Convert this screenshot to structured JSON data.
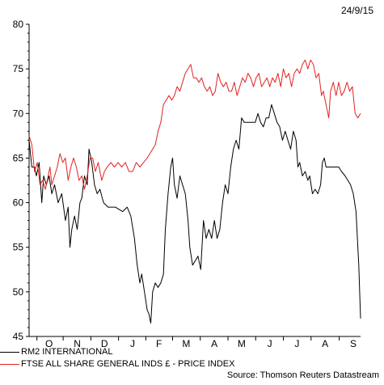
{
  "date_label": "24/9/15",
  "source": "Source: Thomson Reuters Datastream",
  "chart_data": {
    "type": "line",
    "title": "",
    "xlabel": "",
    "ylabel": "",
    "ylim": [
      45,
      80
    ],
    "yticks": [
      45,
      50,
      55,
      60,
      65,
      70,
      75,
      80
    ],
    "x_range": [
      "2014-09-24",
      "2015-09-24"
    ],
    "month_ticks": [
      {
        "label": "O",
        "date": "2014-10-16"
      },
      {
        "label": "N",
        "date": "2014-11-16"
      },
      {
        "label": "D",
        "date": "2014-12-16"
      },
      {
        "label": "J",
        "date": "2015-01-16"
      },
      {
        "label": "F",
        "date": "2015-02-14"
      },
      {
        "label": "M",
        "date": "2015-03-16"
      },
      {
        "label": "A",
        "date": "2015-04-16"
      },
      {
        "label": "M",
        "date": "2015-05-16"
      },
      {
        "label": "J",
        "date": "2015-06-16"
      },
      {
        "label": "J",
        "date": "2015-07-16"
      },
      {
        "label": "A",
        "date": "2015-08-16"
      },
      {
        "label": "S",
        "date": "2015-09-16"
      }
    ],
    "grid": false,
    "legend_position": "bottom-left",
    "series": [
      {
        "name": "RM2 INTERNATIONAL",
        "color": "#000000",
        "points": [
          [
            "2014-09-24",
            67
          ],
          [
            "2014-09-27",
            64
          ],
          [
            "2014-09-30",
            64
          ],
          [
            "2014-10-02",
            63
          ],
          [
            "2014-10-05",
            64.5
          ],
          [
            "2014-10-08",
            60
          ],
          [
            "2014-10-10",
            63
          ],
          [
            "2014-10-13",
            62
          ],
          [
            "2014-10-16",
            63
          ],
          [
            "2014-10-19",
            61
          ],
          [
            "2014-10-22",
            62
          ],
          [
            "2014-10-26",
            60
          ],
          [
            "2014-10-30",
            61
          ],
          [
            "2014-11-03",
            58
          ],
          [
            "2014-11-06",
            59.5
          ],
          [
            "2014-11-08",
            55
          ],
          [
            "2014-11-10",
            57
          ],
          [
            "2014-11-13",
            58.5
          ],
          [
            "2014-11-16",
            57
          ],
          [
            "2014-11-19",
            60
          ],
          [
            "2014-11-21",
            60.5
          ],
          [
            "2014-11-24",
            63
          ],
          [
            "2014-11-27",
            62
          ],
          [
            "2014-11-29",
            66
          ],
          [
            "2014-12-02",
            64.5
          ],
          [
            "2014-12-05",
            62
          ],
          [
            "2014-12-08",
            61
          ],
          [
            "2014-12-11",
            61.5
          ],
          [
            "2014-12-15",
            60
          ],
          [
            "2014-12-20",
            59.5
          ],
          [
            "2014-12-28",
            59.5
          ],
          [
            "2015-01-05",
            59
          ],
          [
            "2015-01-10",
            59.5
          ],
          [
            "2015-01-14",
            58.5
          ],
          [
            "2015-01-18",
            56
          ],
          [
            "2015-01-21",
            53
          ],
          [
            "2015-01-24",
            51
          ],
          [
            "2015-01-26",
            52
          ],
          [
            "2015-01-29",
            50
          ],
          [
            "2015-02-01",
            48
          ],
          [
            "2015-02-03",
            47.5
          ],
          [
            "2015-02-05",
            46.5
          ],
          [
            "2015-02-07",
            50
          ],
          [
            "2015-02-10",
            51
          ],
          [
            "2015-02-13",
            50.5
          ],
          [
            "2015-02-16",
            51
          ],
          [
            "2015-02-19",
            52
          ],
          [
            "2015-02-21",
            57
          ],
          [
            "2015-02-24",
            61
          ],
          [
            "2015-02-27",
            64
          ],
          [
            "2015-03-01",
            65
          ],
          [
            "2015-03-03",
            62
          ],
          [
            "2015-03-06",
            60.5
          ],
          [
            "2015-03-09",
            63
          ],
          [
            "2015-03-12",
            62
          ],
          [
            "2015-03-15",
            61
          ],
          [
            "2015-03-18",
            58
          ],
          [
            "2015-03-20",
            55
          ],
          [
            "2015-03-23",
            53
          ],
          [
            "2015-03-26",
            53.5
          ],
          [
            "2015-03-29",
            54
          ],
          [
            "2015-04-01",
            52.5
          ],
          [
            "2015-04-04",
            58
          ],
          [
            "2015-04-07",
            56
          ],
          [
            "2015-04-10",
            57
          ],
          [
            "2015-04-13",
            56
          ],
          [
            "2015-04-16",
            58
          ],
          [
            "2015-04-19",
            56
          ],
          [
            "2015-04-22",
            57
          ],
          [
            "2015-04-25",
            60
          ],
          [
            "2015-04-28",
            62
          ],
          [
            "2015-05-01",
            61
          ],
          [
            "2015-05-04",
            64
          ],
          [
            "2015-05-07",
            66
          ],
          [
            "2015-05-10",
            67
          ],
          [
            "2015-05-13",
            66
          ],
          [
            "2015-05-16",
            69.5
          ],
          [
            "2015-05-19",
            69
          ],
          [
            "2015-05-25",
            69
          ],
          [
            "2015-05-31",
            69
          ],
          [
            "2015-06-03",
            70
          ],
          [
            "2015-06-06",
            69
          ],
          [
            "2015-06-09",
            68.5
          ],
          [
            "2015-06-12",
            69.5
          ],
          [
            "2015-06-15",
            69.5
          ],
          [
            "2015-06-18",
            71
          ],
          [
            "2015-06-21",
            70
          ],
          [
            "2015-06-24",
            69
          ],
          [
            "2015-06-27",
            68.5
          ],
          [
            "2015-06-30",
            67
          ],
          [
            "2015-07-03",
            68
          ],
          [
            "2015-07-06",
            67
          ],
          [
            "2015-07-09",
            66
          ],
          [
            "2015-07-12",
            68
          ],
          [
            "2015-07-15",
            67
          ],
          [
            "2015-07-17",
            64
          ],
          [
            "2015-07-19",
            64.5
          ],
          [
            "2015-07-22",
            63
          ],
          [
            "2015-07-25",
            63.5
          ],
          [
            "2015-07-28",
            62.5
          ],
          [
            "2015-07-30",
            63
          ],
          [
            "2015-08-02",
            61
          ],
          [
            "2015-08-05",
            61.5
          ],
          [
            "2015-08-08",
            61
          ],
          [
            "2015-08-11",
            62
          ],
          [
            "2015-08-13",
            64.5
          ],
          [
            "2015-08-15",
            65
          ],
          [
            "2015-08-17",
            64
          ],
          [
            "2015-08-21",
            64
          ],
          [
            "2015-08-26",
            64
          ],
          [
            "2015-08-31",
            64
          ],
          [
            "2015-09-03",
            63.5
          ],
          [
            "2015-09-07",
            63
          ],
          [
            "2015-09-10",
            62.5
          ],
          [
            "2015-09-13",
            62
          ],
          [
            "2015-09-16",
            61
          ],
          [
            "2015-09-19",
            59
          ],
          [
            "2015-09-22",
            53
          ],
          [
            "2015-09-24",
            47
          ]
        ]
      },
      {
        "name": "FTSE ALL SHARE GENERAL INDS £ - PRICE INDEX",
        "color": "#e32222",
        "points": [
          [
            "2014-09-24",
            67.5
          ],
          [
            "2014-09-27",
            66.5
          ],
          [
            "2014-09-30",
            63.5
          ],
          [
            "2014-10-03",
            64.5
          ],
          [
            "2014-10-06",
            62
          ],
          [
            "2014-10-09",
            62.5
          ],
          [
            "2014-10-12",
            61.5
          ],
          [
            "2014-10-14",
            62.5
          ],
          [
            "2014-10-17",
            64
          ],
          [
            "2014-10-19",
            62
          ],
          [
            "2014-10-22",
            63
          ],
          [
            "2014-10-25",
            64
          ],
          [
            "2014-10-28",
            65.5
          ],
          [
            "2014-10-31",
            64.5
          ],
          [
            "2014-11-03",
            65
          ],
          [
            "2014-11-06",
            62.5
          ],
          [
            "2014-11-09",
            64
          ],
          [
            "2014-11-12",
            65
          ],
          [
            "2014-11-15",
            64
          ],
          [
            "2014-11-18",
            62.5
          ],
          [
            "2014-11-21",
            63
          ],
          [
            "2014-11-24",
            61.5
          ],
          [
            "2014-11-27",
            63
          ],
          [
            "2014-11-30",
            65
          ],
          [
            "2014-12-03",
            65
          ],
          [
            "2014-12-06",
            63.5
          ],
          [
            "2014-12-09",
            64.5
          ],
          [
            "2014-12-13",
            62.5
          ],
          [
            "2014-12-16",
            63.5
          ],
          [
            "2014-12-19",
            64
          ],
          [
            "2014-12-23",
            64.5
          ],
          [
            "2014-12-27",
            64
          ],
          [
            "2014-12-31",
            64.5
          ],
          [
            "2015-01-04",
            64
          ],
          [
            "2015-01-08",
            64.5
          ],
          [
            "2015-01-12",
            63.5
          ],
          [
            "2015-01-16",
            63.5
          ],
          [
            "2015-01-20",
            64.5
          ],
          [
            "2015-01-24",
            64
          ],
          [
            "2015-01-28",
            64.5
          ],
          [
            "2015-02-01",
            65
          ],
          [
            "2015-02-04",
            65.5
          ],
          [
            "2015-02-07",
            66
          ],
          [
            "2015-02-10",
            66.5
          ],
          [
            "2015-02-13",
            68
          ],
          [
            "2015-02-16",
            69
          ],
          [
            "2015-02-19",
            71
          ],
          [
            "2015-02-22",
            71.5
          ],
          [
            "2015-02-25",
            72
          ],
          [
            "2015-02-28",
            71.5
          ],
          [
            "2015-03-03",
            72
          ],
          [
            "2015-03-06",
            73
          ],
          [
            "2015-03-09",
            72.5
          ],
          [
            "2015-03-12",
            73.5
          ],
          [
            "2015-03-15",
            74.5
          ],
          [
            "2015-03-18",
            75
          ],
          [
            "2015-03-21",
            75.5
          ],
          [
            "2015-03-24",
            74
          ],
          [
            "2015-03-27",
            74
          ],
          [
            "2015-03-30",
            73.5
          ],
          [
            "2015-04-02",
            74
          ],
          [
            "2015-04-05",
            73
          ],
          [
            "2015-04-08",
            72.5
          ],
          [
            "2015-04-11",
            73
          ],
          [
            "2015-04-14",
            72
          ],
          [
            "2015-04-17",
            72.5
          ],
          [
            "2015-04-20",
            74.5
          ],
          [
            "2015-04-23",
            73.5
          ],
          [
            "2015-04-26",
            73
          ],
          [
            "2015-04-29",
            73.5
          ],
          [
            "2015-05-02",
            72.5
          ],
          [
            "2015-05-05",
            72.5
          ],
          [
            "2015-05-08",
            73.5
          ],
          [
            "2015-05-11",
            72
          ],
          [
            "2015-05-14",
            73
          ],
          [
            "2015-05-17",
            74
          ],
          [
            "2015-05-20",
            73.5
          ],
          [
            "2015-05-23",
            74.5
          ],
          [
            "2015-05-26",
            74
          ],
          [
            "2015-05-29",
            73
          ],
          [
            "2015-06-01",
            74
          ],
          [
            "2015-06-04",
            74.5
          ],
          [
            "2015-06-07",
            73
          ],
          [
            "2015-06-10",
            73.5
          ],
          [
            "2015-06-13",
            74
          ],
          [
            "2015-06-16",
            73
          ],
          [
            "2015-06-19",
            74
          ],
          [
            "2015-06-22",
            73.5
          ],
          [
            "2015-06-25",
            74.5
          ],
          [
            "2015-06-28",
            73
          ],
          [
            "2015-07-01",
            75
          ],
          [
            "2015-07-04",
            74
          ],
          [
            "2015-07-07",
            74.5
          ],
          [
            "2015-07-10",
            73
          ],
          [
            "2015-07-13",
            74.5
          ],
          [
            "2015-07-16",
            75
          ],
          [
            "2015-07-19",
            74.5
          ],
          [
            "2015-07-22",
            75.5
          ],
          [
            "2015-07-25",
            76
          ],
          [
            "2015-07-28",
            75
          ],
          [
            "2015-07-31",
            76
          ],
          [
            "2015-08-03",
            75.5
          ],
          [
            "2015-08-06",
            74
          ],
          [
            "2015-08-09",
            74.5
          ],
          [
            "2015-08-12",
            72
          ],
          [
            "2015-08-14",
            72.5
          ],
          [
            "2015-08-17",
            71
          ],
          [
            "2015-08-20",
            69.5
          ],
          [
            "2015-08-22",
            72.5
          ],
          [
            "2015-08-25",
            73.5
          ],
          [
            "2015-08-28",
            72
          ],
          [
            "2015-08-31",
            73.5
          ],
          [
            "2015-09-03",
            72
          ],
          [
            "2015-09-06",
            72.5
          ],
          [
            "2015-09-09",
            73.5
          ],
          [
            "2015-09-12",
            72.5
          ],
          [
            "2015-09-15",
            73
          ],
          [
            "2015-09-18",
            70
          ],
          [
            "2015-09-21",
            69.5
          ],
          [
            "2015-09-24",
            70
          ]
        ]
      }
    ]
  }
}
